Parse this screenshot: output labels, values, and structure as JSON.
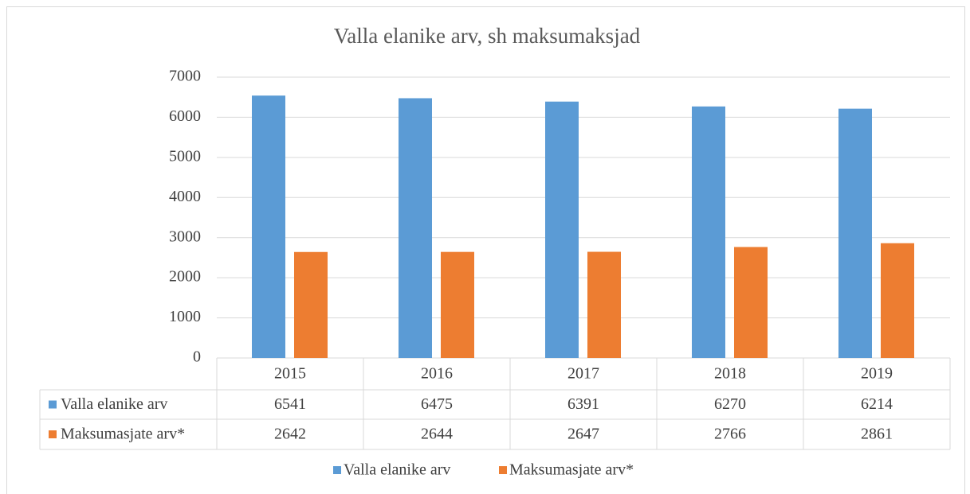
{
  "chart_data": {
    "type": "bar",
    "title": "Valla elanike arv, sh maksumaksjad",
    "categories": [
      "2015",
      "2016",
      "2017",
      "2018",
      "2019"
    ],
    "series": [
      {
        "name": "Valla elanike arv",
        "color": "#5b9bd5",
        "values": [
          6541,
          6475,
          6391,
          6270,
          6214
        ]
      },
      {
        "name": "Maksumasjate arv*",
        "color": "#ed7d31",
        "values": [
          2642,
          2644,
          2647,
          2766,
          2861
        ]
      }
    ],
    "ylim": [
      0,
      7000
    ],
    "yticks": [
      0,
      1000,
      2000,
      3000,
      4000,
      5000,
      6000,
      7000
    ],
    "grid": true,
    "legend": "bottom"
  }
}
